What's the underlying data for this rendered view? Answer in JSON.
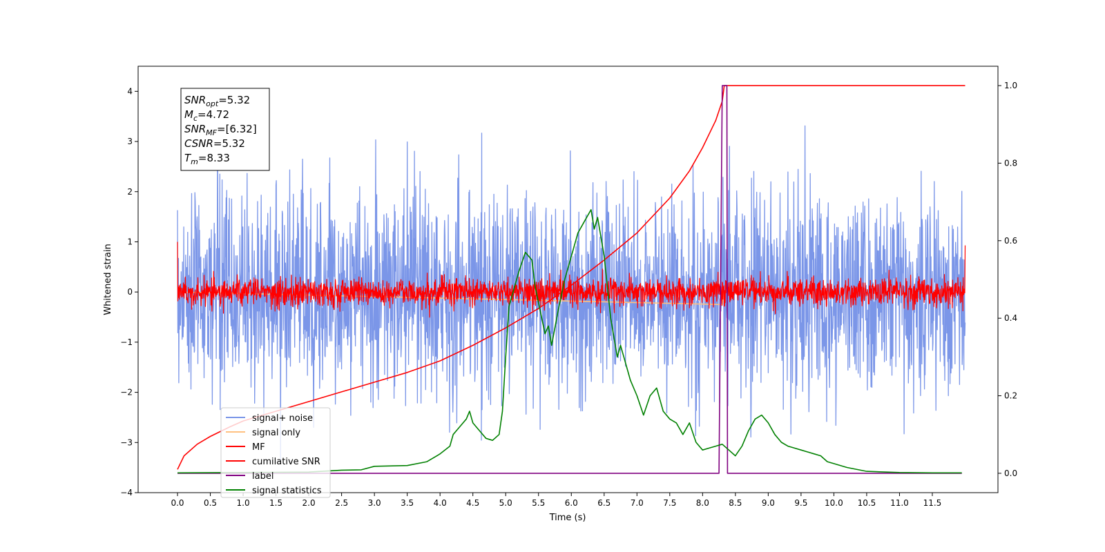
{
  "chart_data": {
    "type": "line",
    "title": "",
    "xlabel": "Time (s)",
    "ylabel": "Whitened strain",
    "ylabel_right": "",
    "xlim": [
      -0.6,
      12.5
    ],
    "ylim": [
      -4.0,
      4.5
    ],
    "ylim_right": [
      -0.05,
      1.05
    ],
    "x_ticks": [
      "0.0",
      "0.5",
      "1.0",
      "1.5",
      "2.0",
      "2.5",
      "3.0",
      "3.5",
      "4.0",
      "4.5",
      "5.0",
      "5.5",
      "6.0",
      "6.5",
      "7.0",
      "7.5",
      "8.0",
      "8.5",
      "9.0",
      "9.5",
      "10.0",
      "10.5",
      "11.0",
      "11.5"
    ],
    "y_ticks": [
      "−4",
      "−3",
      "−2",
      "−1",
      "0",
      "1",
      "2",
      "3",
      "4"
    ],
    "y_ticks_right": [
      "0.0",
      "0.2",
      "0.4",
      "0.6",
      "0.8",
      "1.0"
    ],
    "grid": false,
    "legend_position": "lower-left",
    "annotation": {
      "lines": [
        {
          "base": "SNR",
          "sub": "opt",
          "rest": "=5.32"
        },
        {
          "base": "M",
          "sub": "c",
          "rest": "=4.72"
        },
        {
          "base": "SNR",
          "sub": "MF",
          "rest": "=[6.32]"
        },
        {
          "base": "CSNR",
          "sub": "",
          "rest": "=5.32"
        },
        {
          "base": "T",
          "sub": "m",
          "rest": "=8.33"
        }
      ]
    },
    "series": [
      {
        "name": "signal+ noise",
        "axis": "left",
        "color": "#7b96e8",
        "noise": {
          "t_start": 0.0,
          "t_end": 12.0,
          "sigma": 1.0
        }
      },
      {
        "name": "signal only",
        "axis": "left",
        "color": "#ffc080",
        "note_values": {
          "x": [
            0.0,
            8.3,
            8.33
          ],
          "y": [
            0.0,
            -0.25,
            0.0
          ]
        }
      },
      {
        "name": "MF",
        "axis": "left",
        "color": "#ff0000",
        "noise": {
          "t_start": 0.0,
          "t_end": 12.0,
          "sigma": 0.14,
          "start_value": 1.0,
          "end_value": 0.93
        }
      },
      {
        "name": "cumilative SNR",
        "axis": "right",
        "color": "#ff0000",
        "x": [
          0.0,
          0.1,
          0.3,
          0.5,
          0.8,
          1.0,
          1.5,
          2.0,
          2.5,
          3.0,
          3.5,
          4.0,
          4.5,
          5.0,
          5.5,
          6.0,
          6.5,
          7.0,
          7.5,
          7.8,
          8.0,
          8.1,
          8.2,
          8.3,
          8.33,
          12.0
        ],
        "y": [
          0.01,
          0.045,
          0.075,
          0.095,
          0.12,
          0.135,
          0.16,
          0.185,
          0.21,
          0.235,
          0.26,
          0.29,
          0.33,
          0.375,
          0.425,
          0.485,
          0.55,
          0.62,
          0.71,
          0.78,
          0.84,
          0.875,
          0.91,
          0.96,
          1.0,
          1.0
        ]
      },
      {
        "name": "label",
        "axis": "right",
        "color": "#800080",
        "x": [
          0.0,
          8.25,
          8.3,
          8.37,
          8.38,
          11.95
        ],
        "y": [
          0.0,
          0.0,
          1.0,
          1.0,
          0.0,
          0.0
        ]
      },
      {
        "name": "signal statistics",
        "axis": "right",
        "color": "#008000",
        "x": [
          0.0,
          1.0,
          2.0,
          2.5,
          2.8,
          3.0,
          3.5,
          3.8,
          4.0,
          4.15,
          4.2,
          4.3,
          4.4,
          4.45,
          4.5,
          4.6,
          4.7,
          4.8,
          4.9,
          4.95,
          5.0,
          5.05,
          5.1,
          5.2,
          5.3,
          5.35,
          5.4,
          5.45,
          5.5,
          5.6,
          5.65,
          5.7,
          5.8,
          5.9,
          6.0,
          6.1,
          6.2,
          6.3,
          6.35,
          6.4,
          6.5,
          6.6,
          6.7,
          6.75,
          6.8,
          6.9,
          7.0,
          7.1,
          7.2,
          7.3,
          7.4,
          7.5,
          7.6,
          7.7,
          7.8,
          7.9,
          8.0,
          8.1,
          8.2,
          8.3,
          8.4,
          8.5,
          8.6,
          8.7,
          8.8,
          8.9,
          9.0,
          9.1,
          9.2,
          9.3,
          9.4,
          9.5,
          9.6,
          9.7,
          9.8,
          9.9,
          10.0,
          10.2,
          10.5,
          11.0,
          11.5,
          11.95
        ],
        "y": [
          0.001,
          0.002,
          0.003,
          0.008,
          0.009,
          0.018,
          0.02,
          0.03,
          0.05,
          0.07,
          0.1,
          0.12,
          0.14,
          0.16,
          0.13,
          0.11,
          0.09,
          0.085,
          0.1,
          0.16,
          0.3,
          0.43,
          0.46,
          0.52,
          0.57,
          0.56,
          0.55,
          0.48,
          0.44,
          0.36,
          0.38,
          0.33,
          0.42,
          0.5,
          0.56,
          0.62,
          0.65,
          0.68,
          0.63,
          0.66,
          0.56,
          0.4,
          0.3,
          0.33,
          0.3,
          0.24,
          0.2,
          0.15,
          0.2,
          0.22,
          0.16,
          0.14,
          0.13,
          0.1,
          0.13,
          0.08,
          0.06,
          0.065,
          0.07,
          0.075,
          0.06,
          0.045,
          0.07,
          0.11,
          0.14,
          0.15,
          0.13,
          0.1,
          0.08,
          0.07,
          0.065,
          0.06,
          0.055,
          0.05,
          0.045,
          0.03,
          0.025,
          0.015,
          0.005,
          0.002,
          0.001,
          0.001
        ]
      }
    ]
  }
}
